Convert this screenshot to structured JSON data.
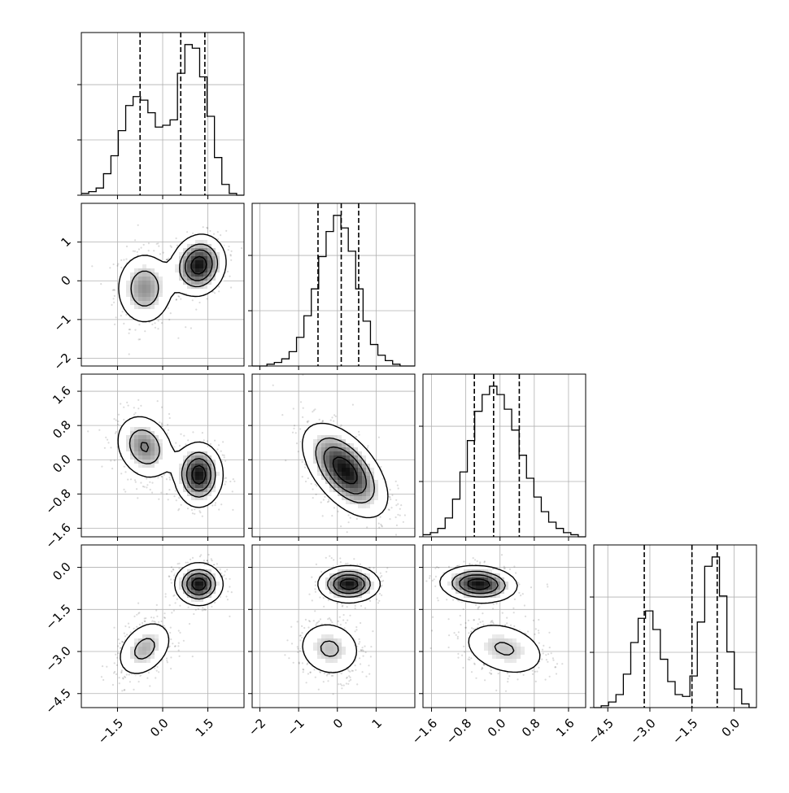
{
  "chart_data": {
    "type": "corner",
    "grid": true,
    "params": [
      {
        "range": [
          -2.7,
          2.7
        ],
        "tick_labels": [
          "-1.5",
          "0.0",
          "1.5"
        ],
        "tick_values": [
          -1.5,
          0.0,
          1.5
        ],
        "quantiles": [
          -0.75,
          0.6,
          1.4
        ],
        "hist": [
          1,
          2,
          4,
          12,
          22,
          36,
          50,
          55,
          53,
          46,
          38,
          39,
          42,
          68,
          84,
          82,
          66,
          44,
          21,
          6,
          1,
          0
        ]
      },
      {
        "range": [
          -2.2,
          2.0
        ],
        "tick_labels": [
          "-2",
          "-1",
          "0",
          "1"
        ],
        "tick_values": [
          -2,
          -1,
          0,
          1
        ],
        "quantiles": [
          -0.5,
          0.1,
          0.55
        ],
        "hist": [
          0,
          0,
          1,
          2,
          4,
          8,
          16,
          28,
          43,
          61,
          75,
          84,
          77,
          64,
          43,
          25,
          12,
          6,
          3,
          1,
          0,
          0
        ]
      },
      {
        "range": [
          -1.8,
          2.0
        ],
        "tick_labels": [
          "-1.6",
          "-0.8",
          "0.0",
          "0.8",
          "1.6"
        ],
        "tick_values": [
          -1.6,
          -0.8,
          0.0,
          0.8,
          1.6
        ],
        "quantiles": [
          -0.6,
          -0.15,
          0.45
        ],
        "hist": [
          1,
          2,
          4,
          9,
          18,
          31,
          46,
          60,
          68,
          72,
          68,
          61,
          51,
          39,
          28,
          19,
          12,
          7,
          4,
          2,
          1,
          0
        ]
      },
      {
        "range": [
          -5.0,
          0.8
        ],
        "tick_labels": [
          "-4.5",
          "-3.0",
          "-1.5",
          "0.0"
        ],
        "tick_values": [
          -4.5,
          -3.0,
          -1.5,
          0.0
        ],
        "quantiles": [
          -3.2,
          -1.5,
          -0.6
        ],
        "hist": [
          0,
          1,
          3,
          7,
          18,
          35,
          48,
          52,
          42,
          26,
          14,
          7,
          6,
          17,
          46,
          76,
          81,
          60,
          30,
          10,
          2,
          0
        ]
      }
    ],
    "pairs": [
      {
        "row": 1,
        "col": 0,
        "components": [
          {
            "mean": [
              -0.6,
              -0.2
            ],
            "sd": [
              0.5,
              0.5
            ],
            "rho": 0.0,
            "w": 0.45
          },
          {
            "mean": [
              1.2,
              0.4
            ],
            "sd": [
              0.45,
              0.4
            ],
            "rho": 0.1,
            "w": 0.55
          }
        ]
      },
      {
        "row": 2,
        "col": 0,
        "components": [
          {
            "mean": [
              -0.6,
              0.3
            ],
            "sd": [
              0.5,
              0.4
            ],
            "rho": -0.2,
            "w": 0.45
          },
          {
            "mean": [
              1.2,
              -0.35
            ],
            "sd": [
              0.4,
              0.38
            ],
            "rho": 0.0,
            "w": 0.55
          }
        ]
      },
      {
        "row": 2,
        "col": 1,
        "components": [
          {
            "mean": [
              0.2,
              -0.25
            ],
            "sd": [
              0.55,
              0.55
            ],
            "rho": -0.55,
            "w": 1.0
          }
        ]
      },
      {
        "row": 3,
        "col": 0,
        "components": [
          {
            "mean": [
              -0.6,
              -2.9
            ],
            "sd": [
              0.5,
              0.55
            ],
            "rho": 0.35,
            "w": 0.45
          },
          {
            "mean": [
              1.2,
              -0.6
            ],
            "sd": [
              0.4,
              0.38
            ],
            "rho": 0.0,
            "w": 0.55
          }
        ]
      },
      {
        "row": 3,
        "col": 1,
        "components": [
          {
            "mean": [
              -0.2,
              -2.9
            ],
            "sd": [
              0.45,
              0.55
            ],
            "rho": -0.1,
            "w": 0.45
          },
          {
            "mean": [
              0.3,
              -0.6
            ],
            "sd": [
              0.4,
              0.33
            ],
            "rho": 0.0,
            "w": 0.55
          }
        ]
      },
      {
        "row": 3,
        "col": 2,
        "components": [
          {
            "mean": [
              -0.5,
              -0.6
            ],
            "sd": [
              0.45,
              0.33
            ],
            "rho": -0.1,
            "w": 0.55
          },
          {
            "mean": [
              0.1,
              -2.9
            ],
            "sd": [
              0.55,
              0.55
            ],
            "rho": -0.3,
            "w": 0.45
          }
        ]
      }
    ]
  }
}
